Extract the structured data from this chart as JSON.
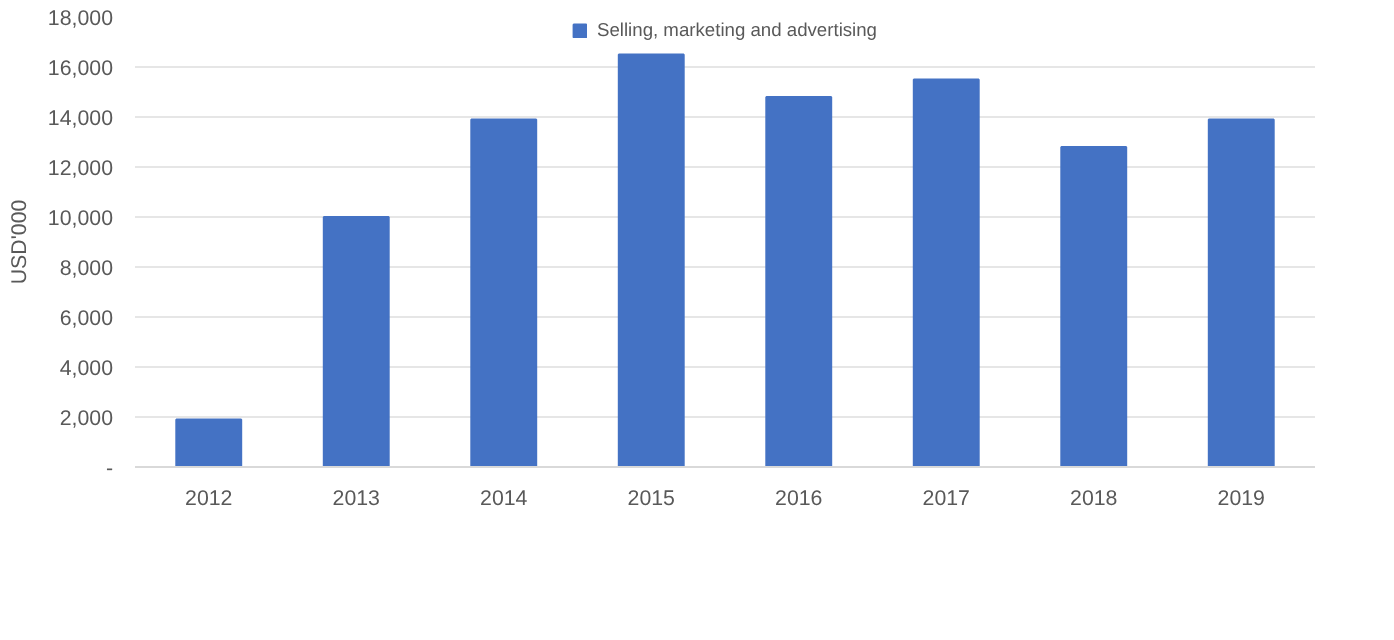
{
  "chart_data": {
    "type": "bar",
    "ylabel": "USD'000",
    "categories": [
      "2012",
      "2013",
      "2014",
      "2015",
      "2016",
      "2017",
      "2018",
      "2019"
    ],
    "series": [
      {
        "name": "Selling, marketing and advertising",
        "color": "#4472c4",
        "values": [
          1900,
          10000,
          13900,
          16500,
          14800,
          15500,
          12800,
          13900
        ]
      }
    ],
    "ylim": [
      0,
      18000
    ],
    "yticks": [
      {
        "value": 0,
        "label": "-"
      },
      {
        "value": 2000,
        "label": "2,000"
      },
      {
        "value": 4000,
        "label": "4,000"
      },
      {
        "value": 6000,
        "label": "6,000"
      },
      {
        "value": 8000,
        "label": "8,000"
      },
      {
        "value": 10000,
        "label": "10,000"
      },
      {
        "value": 12000,
        "label": "12,000"
      },
      {
        "value": 14000,
        "label": "14,000"
      },
      {
        "value": 16000,
        "label": "16,000"
      },
      {
        "value": 18000,
        "label": "18,000"
      }
    ],
    "grid": "y",
    "legend": "top right"
  }
}
